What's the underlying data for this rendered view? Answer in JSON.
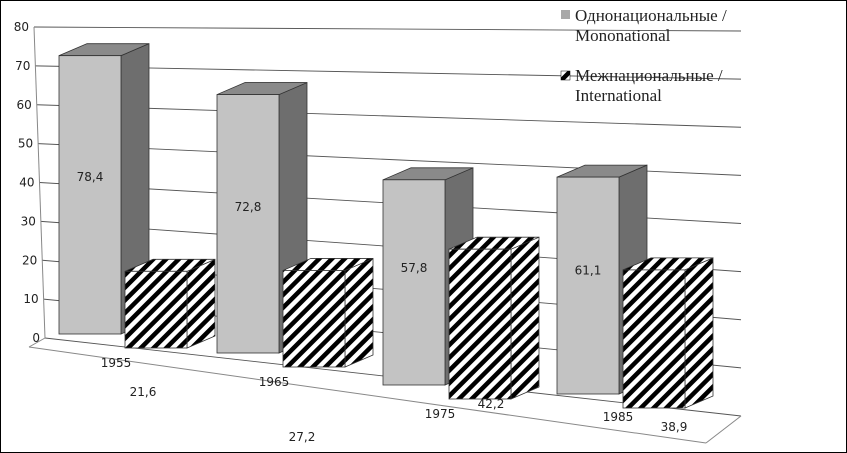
{
  "chart_data": {
    "type": "bar",
    "categories": [
      "1955",
      "1965",
      "1975",
      "1985"
    ],
    "series": [
      {
        "name": "Однонациональные / Mononational",
        "values": [
          78.4,
          72.8,
          57.8,
          61.1
        ],
        "labels": [
          "78,4",
          "72,8",
          "57,8",
          "61,1"
        ],
        "color": "#c0c0c0"
      },
      {
        "name": "Межнациональные / International",
        "values": [
          21.6,
          27.2,
          42.2,
          38.9
        ],
        "labels": [
          "21,6",
          "27,2",
          "42,2",
          "38,9"
        ],
        "color": "#000000"
      }
    ],
    "y_ticks": [
      "0",
      "10",
      "20",
      "30",
      "40",
      "50",
      "60",
      "70",
      "80"
    ],
    "ylim": [
      0,
      80
    ],
    "grid": true,
    "legend_position": "top-right",
    "legend": [
      {
        "line1": "Однонациональные /",
        "line2": "Mononational"
      },
      {
        "line1": "Межнациональные /",
        "line2": "International"
      }
    ]
  }
}
